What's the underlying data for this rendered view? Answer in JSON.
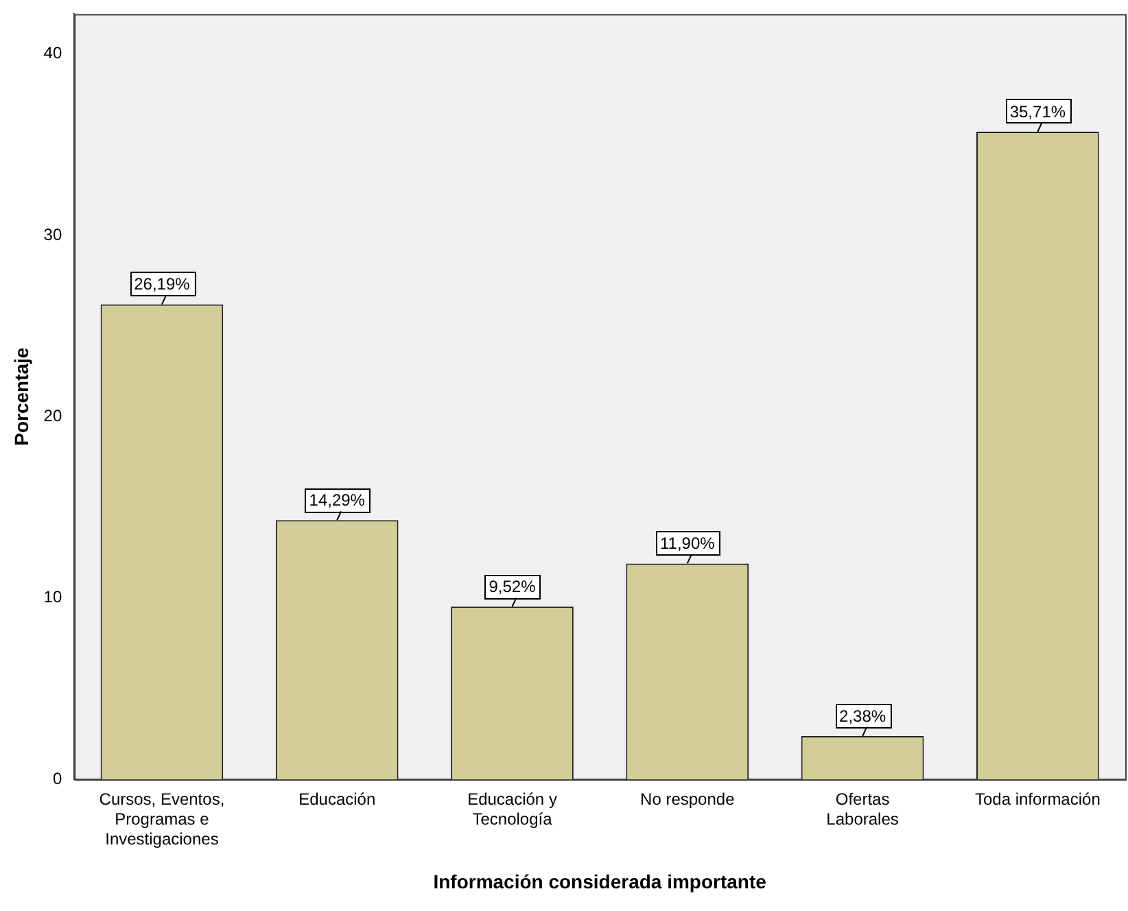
{
  "chart_data": {
    "type": "bar",
    "xlabel": "Información considerada importante",
    "ylabel": "Porcentaje",
    "categories": [
      "Cursos, Eventos, Programas e Investigaciones",
      "Educación",
      "Educación y Tecnología",
      "No responde",
      "Ofertas Laborales",
      "Toda información"
    ],
    "values": [
      26.19,
      14.29,
      9.52,
      11.9,
      2.38,
      35.71
    ],
    "value_labels": [
      "26,19%",
      "14,29%",
      "9,52%",
      "11,90%",
      "2,38%",
      "35,71%"
    ],
    "color": "#d3ce97",
    "ylim": [
      0,
      42.2
    ],
    "yticks": [
      0,
      10,
      20,
      30,
      40
    ],
    "grid": false,
    "legend": false
  }
}
